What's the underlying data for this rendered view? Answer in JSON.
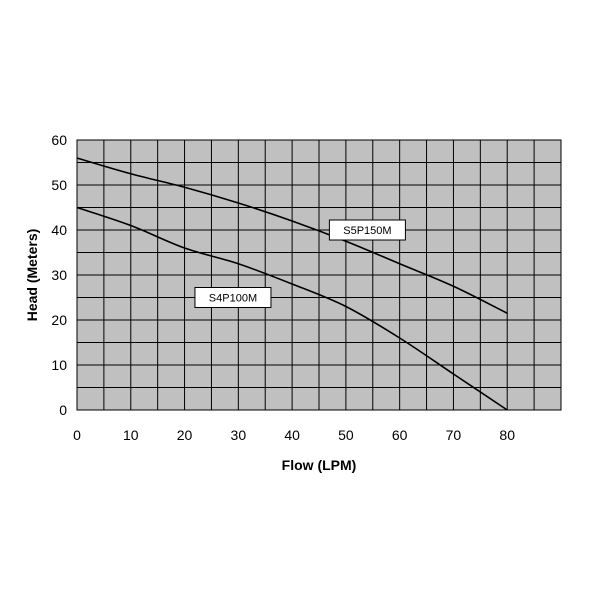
{
  "chart_data": {
    "type": "line",
    "title": "",
    "xlabel": "Flow (LPM)",
    "ylabel": "Head (Meters)",
    "xlim": [
      0,
      90
    ],
    "ylim": [
      0,
      60
    ],
    "x_ticks": [
      0,
      10,
      20,
      30,
      40,
      50,
      60,
      70,
      80
    ],
    "y_ticks": [
      0,
      10,
      20,
      30,
      40,
      50,
      60
    ],
    "x_minor_step": 5,
    "y_minor_step": 5,
    "grid": true,
    "legend": "none",
    "colors": {
      "plot_bg": "#c0c0c0",
      "grid": "#000000",
      "line": "#000000"
    },
    "series": [
      {
        "name": "S5P150M",
        "x": [
          0,
          10,
          20,
          30,
          40,
          50,
          60,
          70,
          80
        ],
        "y": [
          56,
          52.5,
          49.5,
          46,
          42,
          37.5,
          32.5,
          27.5,
          21.5
        ]
      },
      {
        "name": "S4P100M",
        "x": [
          0,
          10,
          20,
          30,
          40,
          50,
          60,
          70,
          80
        ],
        "y": [
          45,
          41,
          36,
          32.5,
          28,
          23,
          16,
          8,
          0
        ]
      }
    ],
    "annotations": [
      {
        "text": "S5P150M",
        "x": 54,
        "y": 40
      },
      {
        "text": "S4P100M",
        "x": 29,
        "y": 25
      }
    ]
  }
}
